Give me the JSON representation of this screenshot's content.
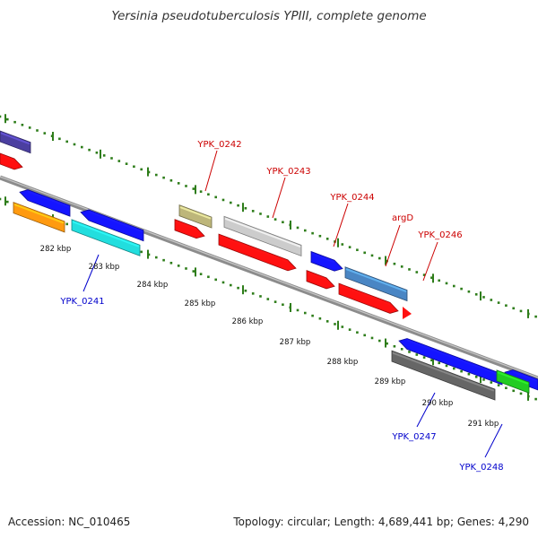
{
  "map": {
    "title": "Yersinia pseudotuberculosis YPIII, complete genome",
    "accession": "Accession: NC_010465",
    "summary": "Topology: circular; Length: 4,689,441 bp; Genes: 4,290"
  },
  "axis": {
    "ticks": [
      "282 kbp",
      "283 kbp",
      "284 kbp",
      "285 kbp",
      "286 kbp",
      "287 kbp",
      "288 kbp",
      "289 kbp",
      "290 kbp",
      "291 kbp"
    ]
  },
  "gene_labels": {
    "forward": [
      "YPK_0242",
      "YPK_0243",
      "YPK_0244",
      "argD",
      "YPK_0246"
    ],
    "reverse": [
      "YPK_0241",
      "YPK_0247",
      "YPK_0248"
    ]
  },
  "colors": {
    "forward_label": "#cc0000",
    "reverse_label": "#0000cc",
    "tick": "#2e7d1a",
    "backbone": "#8a8a8a",
    "red": "#ff1010",
    "blue": "#1414ff",
    "cyan": "#22dede",
    "orange": "#ff9a10",
    "purple": "#4b3fa0",
    "olive": "#bdb67a",
    "light_gray": "#cccccc",
    "steel_blue": "#4a86c4",
    "dark_gray": "#666666",
    "green": "#22cc22"
  }
}
